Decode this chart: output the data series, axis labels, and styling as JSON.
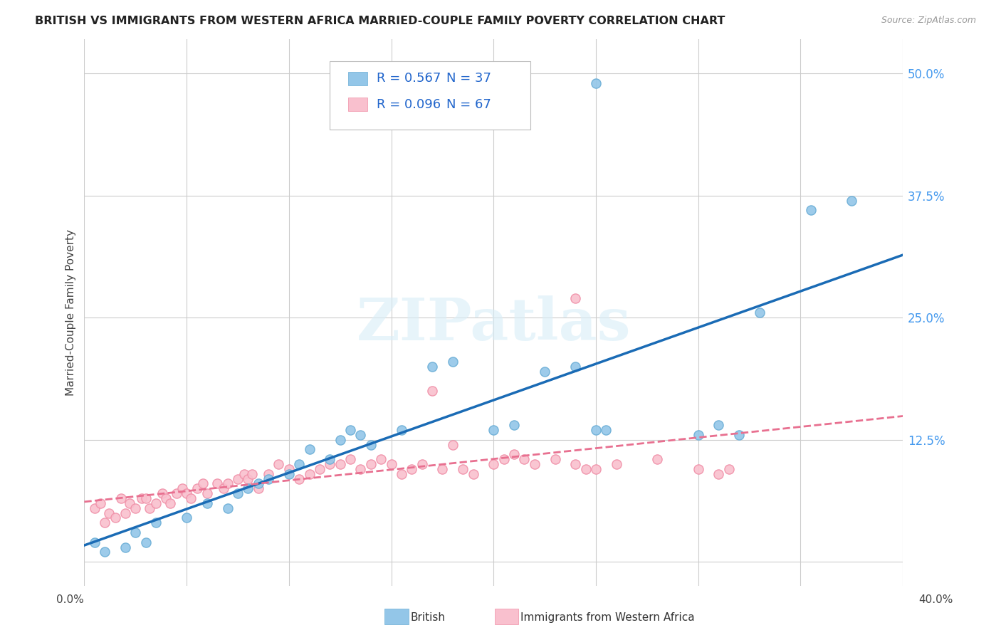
{
  "title": "BRITISH VS IMMIGRANTS FROM WESTERN AFRICA MARRIED-COUPLE FAMILY POVERTY CORRELATION CHART",
  "source": "Source: ZipAtlas.com",
  "ylabel": "Married-Couple Family Poverty",
  "xmin": 0.0,
  "xmax": 0.4,
  "ymin": -0.025,
  "ymax": 0.535,
  "ytick_values": [
    0.0,
    0.125,
    0.25,
    0.375,
    0.5
  ],
  "ytick_labels": [
    "",
    "12.5%",
    "25.0%",
    "37.5%",
    "50.0%"
  ],
  "watermark_text": "ZIPatlas",
  "legend_r1": "R = 0.567",
  "legend_n1": "N = 37",
  "legend_r2": "R = 0.096",
  "legend_n2": "N = 67",
  "british_color": "#93c6e8",
  "british_edge": "#6baed6",
  "western_africa_color": "#f9c0ce",
  "western_africa_edge": "#f090a8",
  "british_line_color": "#1a6bb5",
  "western_africa_line_color": "#e87090",
  "brit_r": 0.567,
  "wa_r": 0.096,
  "british_scatter_x": [
    0.005,
    0.01,
    0.02,
    0.025,
    0.03,
    0.035,
    0.05,
    0.06,
    0.07,
    0.075,
    0.08,
    0.085,
    0.09,
    0.1,
    0.105,
    0.11,
    0.12,
    0.125,
    0.13,
    0.135,
    0.14,
    0.155,
    0.17,
    0.18,
    0.2,
    0.21,
    0.225,
    0.24,
    0.25,
    0.255,
    0.3,
    0.31,
    0.32,
    0.33,
    0.355,
    0.375,
    0.25
  ],
  "british_scatter_y": [
    0.02,
    0.01,
    0.015,
    0.03,
    0.02,
    0.04,
    0.045,
    0.06,
    0.055,
    0.07,
    0.075,
    0.08,
    0.085,
    0.09,
    0.1,
    0.115,
    0.105,
    0.125,
    0.135,
    0.13,
    0.12,
    0.135,
    0.2,
    0.205,
    0.135,
    0.14,
    0.195,
    0.2,
    0.135,
    0.135,
    0.13,
    0.14,
    0.13,
    0.255,
    0.36,
    0.37,
    0.49
  ],
  "western_africa_scatter_x": [
    0.005,
    0.008,
    0.01,
    0.012,
    0.015,
    0.018,
    0.02,
    0.022,
    0.025,
    0.028,
    0.03,
    0.032,
    0.035,
    0.038,
    0.04,
    0.042,
    0.045,
    0.048,
    0.05,
    0.052,
    0.055,
    0.058,
    0.06,
    0.065,
    0.068,
    0.07,
    0.075,
    0.078,
    0.08,
    0.082,
    0.085,
    0.09,
    0.095,
    0.1,
    0.105,
    0.11,
    0.115,
    0.12,
    0.125,
    0.13,
    0.135,
    0.14,
    0.145,
    0.15,
    0.155,
    0.16,
    0.165,
    0.17,
    0.175,
    0.18,
    0.185,
    0.19,
    0.2,
    0.205,
    0.21,
    0.215,
    0.22,
    0.23,
    0.24,
    0.245,
    0.25,
    0.26,
    0.28,
    0.3,
    0.31,
    0.315,
    0.24
  ],
  "western_africa_scatter_y": [
    0.055,
    0.06,
    0.04,
    0.05,
    0.045,
    0.065,
    0.05,
    0.06,
    0.055,
    0.065,
    0.065,
    0.055,
    0.06,
    0.07,
    0.065,
    0.06,
    0.07,
    0.075,
    0.07,
    0.065,
    0.075,
    0.08,
    0.07,
    0.08,
    0.075,
    0.08,
    0.085,
    0.09,
    0.085,
    0.09,
    0.075,
    0.09,
    0.1,
    0.095,
    0.085,
    0.09,
    0.095,
    0.1,
    0.1,
    0.105,
    0.095,
    0.1,
    0.105,
    0.1,
    0.09,
    0.095,
    0.1,
    0.175,
    0.095,
    0.12,
    0.095,
    0.09,
    0.1,
    0.105,
    0.11,
    0.105,
    0.1,
    0.105,
    0.1,
    0.095,
    0.095,
    0.1,
    0.105,
    0.095,
    0.09,
    0.095,
    0.27
  ]
}
